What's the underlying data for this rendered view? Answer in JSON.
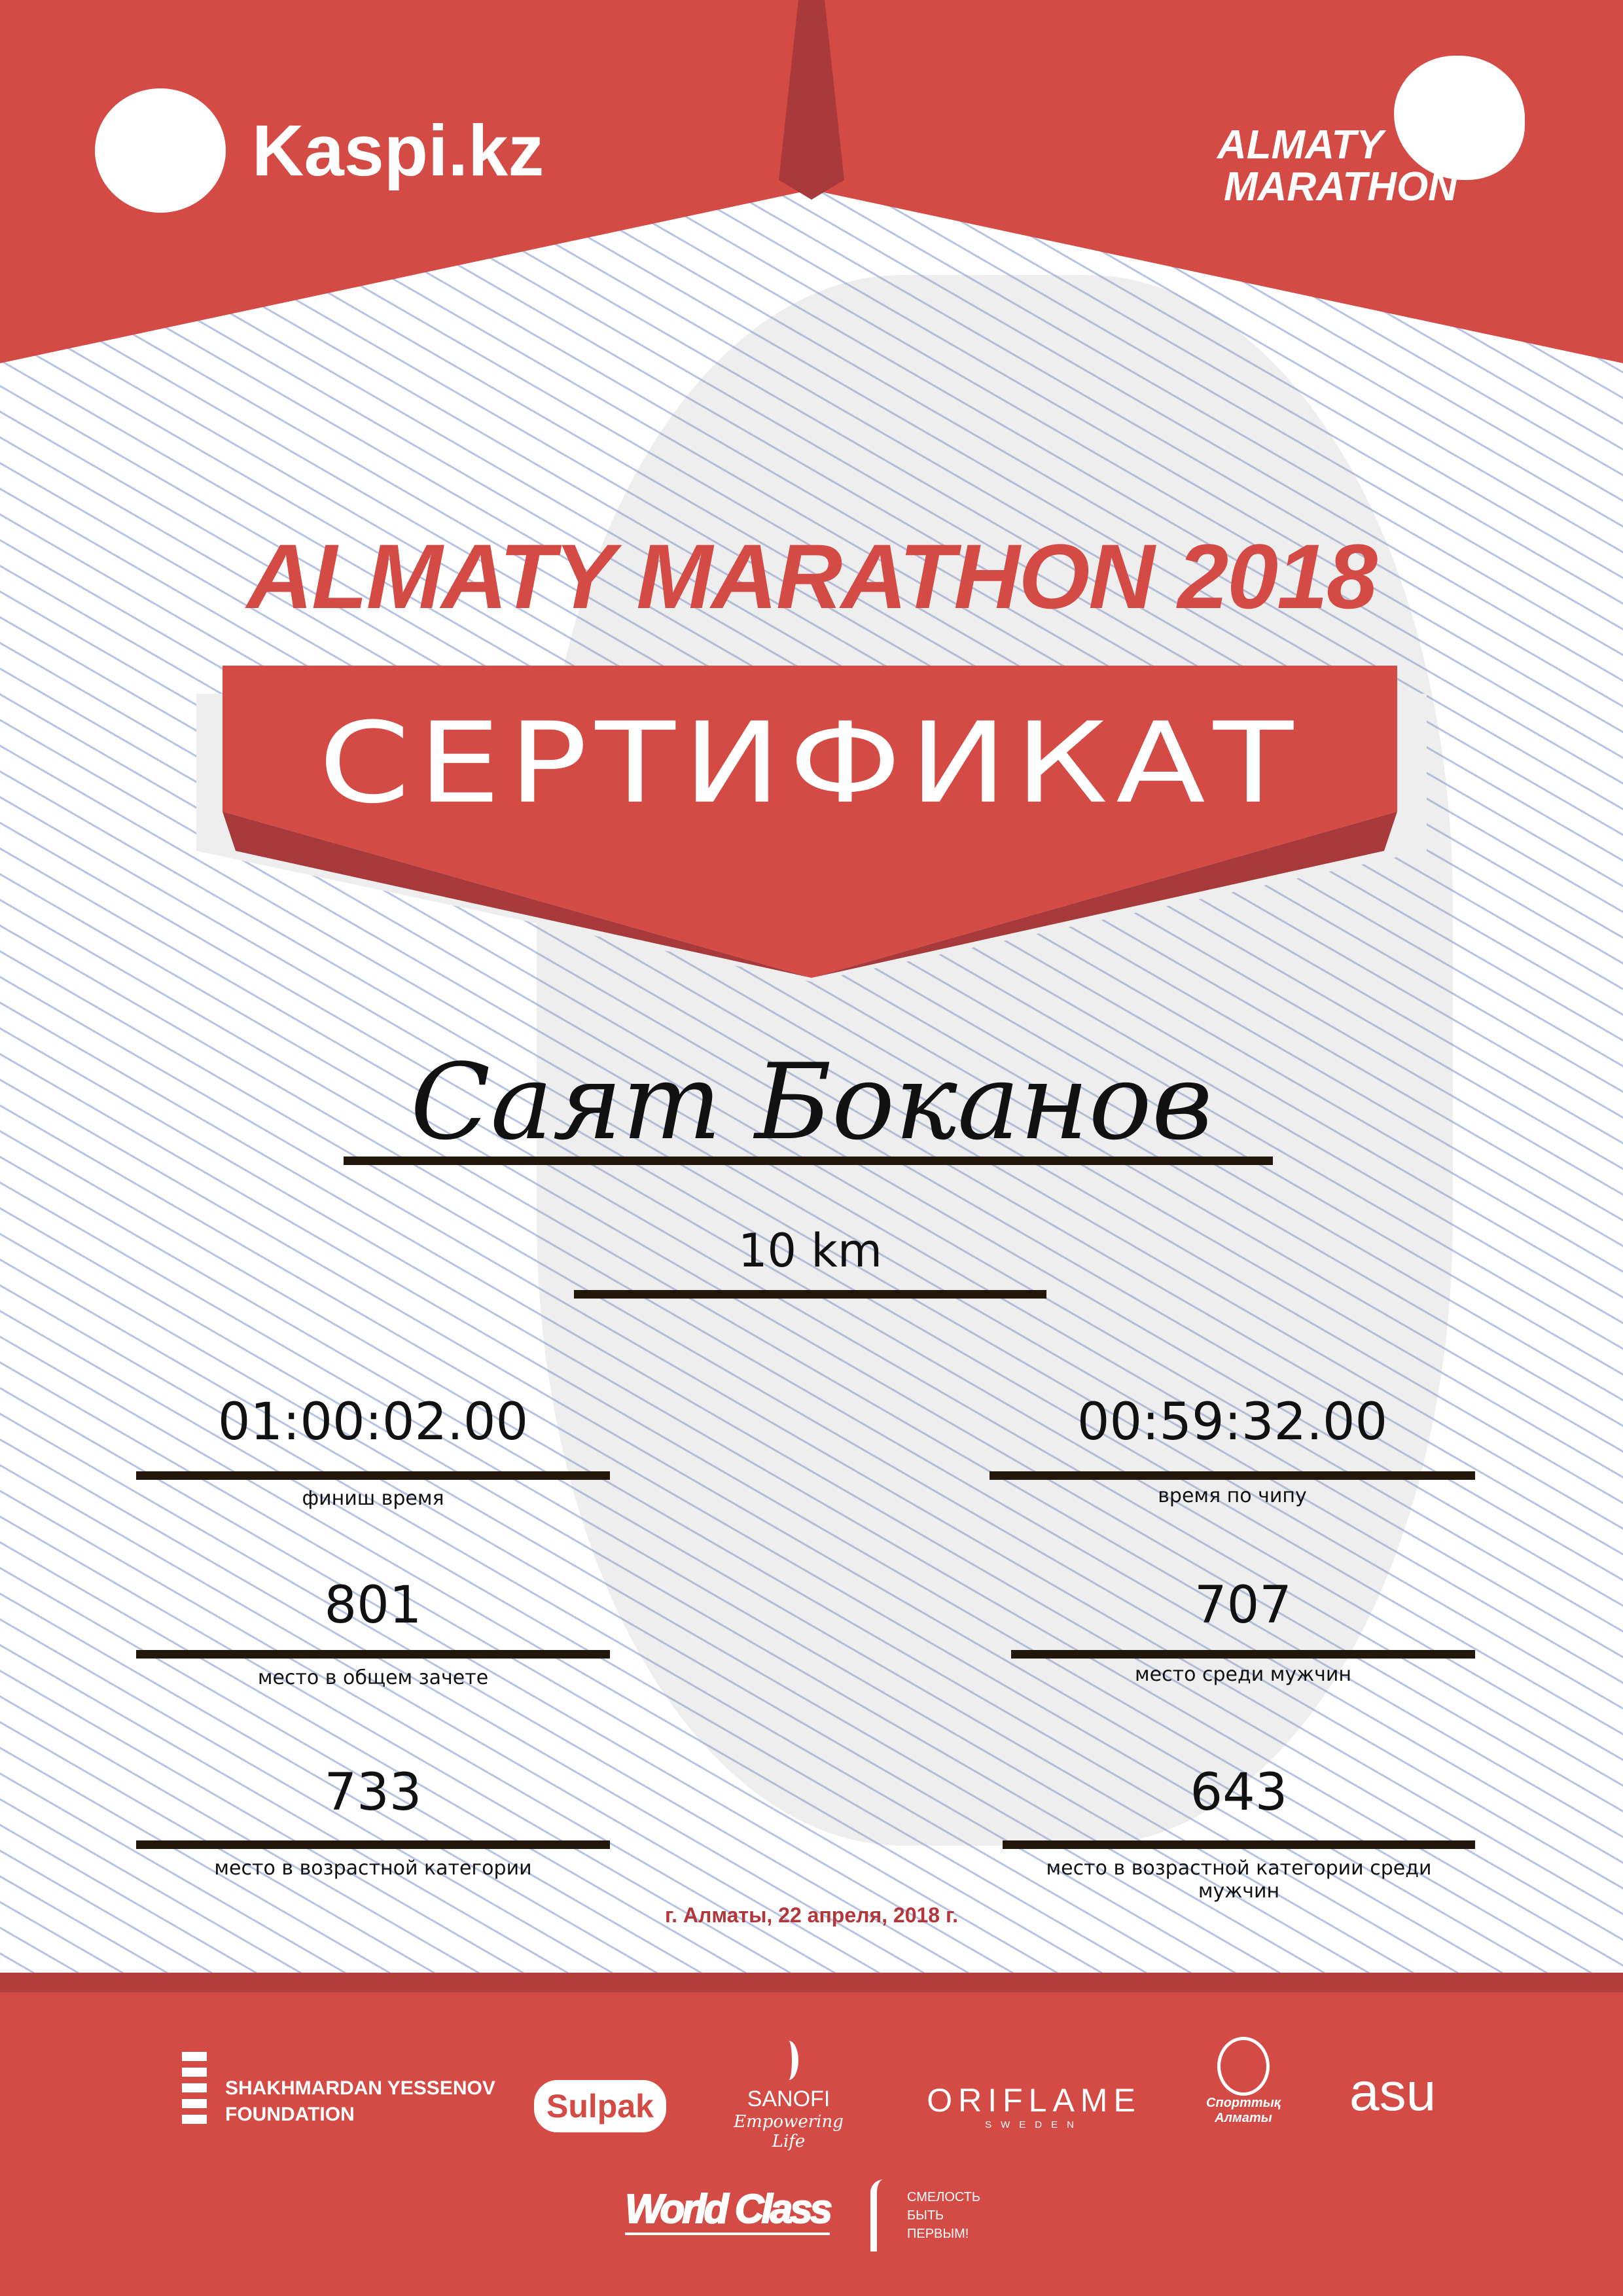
{
  "header": {
    "kaspi_logo": "Kaspi.kz",
    "marathon_logo": [
      "ALMATY",
      "MARATHON"
    ]
  },
  "title": "ALMATY MARATHON 2018",
  "banner": "СЕРТИФИКАТ",
  "participant": {
    "name": "Саят Боканов",
    "distance": "10 km"
  },
  "results": [
    {
      "value": "01:00:02.00",
      "label": "финиш время"
    },
    {
      "value": "00:59:32.00",
      "label": "время по чипу"
    },
    {
      "value": "801",
      "label": "место в общем зачете"
    },
    {
      "value": "707",
      "label": "место среди мужчин"
    },
    {
      "value": "733",
      "label": "место в возрастной категории"
    },
    {
      "value": "643",
      "label": "место в возрастной категории среди мужчин"
    }
  ],
  "date": "г. Алматы, 22 апреля, 2018 г.",
  "sponsors": {
    "yessenov": [
      "SHAKHMARDAN YESSENOV",
      "FOUNDATION"
    ],
    "sulpak": "Sulpak",
    "sanofi": [
      "SANOFI",
      "Empowering Life"
    ],
    "oriflame": [
      "ORIFLAME",
      "SWEDEN"
    ],
    "sport_almaty": [
      "Спорттық",
      "Алматы"
    ],
    "asu": "asu",
    "worldclass": "World Class",
    "fund": [
      "СМЕЛОСТЬ",
      "БЫТЬ",
      "ПЕРВЫМ!"
    ]
  },
  "colors": {
    "brand_red": "#d44a45",
    "dark_red": "#a83a3b",
    "line": "#21170a"
  }
}
